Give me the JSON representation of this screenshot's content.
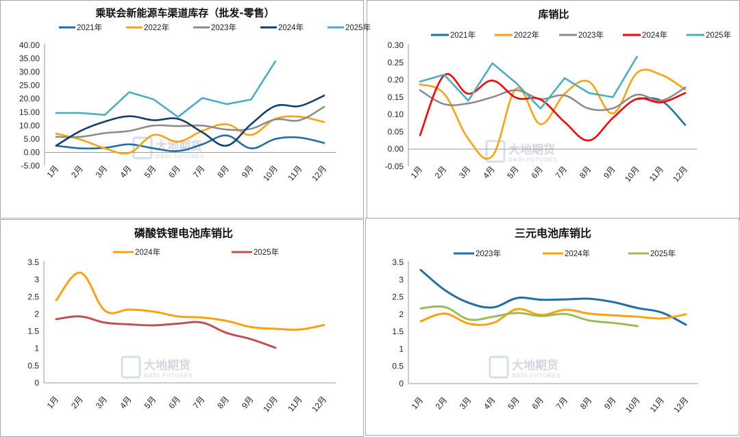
{
  "watermark": {
    "cn": "大地期货",
    "en": "DADI FUTURES"
  },
  "chart_data": [
    {
      "type": "line",
      "title": "乘联会新能源车渠道库存（批发-零售）",
      "categories": [
        "1月",
        "2月",
        "3月",
        "4月",
        "5月",
        "6月",
        "7月",
        "8月",
        "9月",
        "10月",
        "11月",
        "12月"
      ],
      "yticks": [
        "40.00",
        "35.00",
        "30.00",
        "25.00",
        "20.00",
        "15.00",
        "10.00",
        "5.00",
        "0.00",
        "-5.00"
      ],
      "ylim": [
        -5,
        40
      ],
      "grid": false,
      "legend": "top",
      "series": [
        {
          "name": "2021年",
          "color": "#1f6fa5",
          "values": [
            2.5,
            1.5,
            1.7,
            3.0,
            1.5,
            0.5,
            3.0,
            6.3,
            1.5,
            5.0,
            5.5,
            3.5
          ]
        },
        {
          "name": "2022年",
          "color": "#ffa10a",
          "values": [
            7.0,
            4.8,
            1.5,
            -0.2,
            6.5,
            4.0,
            8.0,
            10.5,
            6.5,
            12.5,
            13.3,
            11.3
          ]
        },
        {
          "name": "2023年",
          "color": "#8c8c8c",
          "values": [
            5.8,
            5.8,
            7.2,
            8.0,
            10.0,
            9.8,
            10.0,
            8.5,
            8.8,
            12.3,
            12.0,
            17.0
          ]
        },
        {
          "name": "2024年",
          "color": "#123e6b",
          "values": [
            2.5,
            8.0,
            11.5,
            13.5,
            12.0,
            12.5,
            7.5,
            2.5,
            10.5,
            17.3,
            17.3,
            21.2
          ]
        },
        {
          "name": "2025年",
          "color": "#4bacc6",
          "values": [
            14.7,
            14.7,
            14.0,
            22.5,
            19.8,
            13.2,
            20.3,
            18.0,
            19.7,
            34.0,
            null,
            null
          ]
        }
      ]
    },
    {
      "type": "line",
      "title": "库销比",
      "categories": [
        "1月",
        "2月",
        "3月",
        "4月",
        "5月",
        "6月",
        "7月",
        "8月",
        "9月",
        "10月",
        "11月",
        "12月"
      ],
      "yticks": [
        "0.30",
        "0.25",
        "0.20",
        "0.15",
        "0.10",
        "0.05",
        "0.00",
        "-0.05"
      ],
      "ylim": [
        -0.05,
        0.3
      ],
      "grid": false,
      "legend": "top",
      "series": [
        {
          "name": "2021年",
          "color": "#1f6fa5",
          "values": [
            null,
            null,
            null,
            null,
            null,
            null,
            null,
            null,
            null,
            0.145,
            0.14,
            0.07
          ]
        },
        {
          "name": "2022年",
          "color": "#ffa10a",
          "values": [
            0.187,
            0.16,
            0.03,
            -0.02,
            0.175,
            0.072,
            0.16,
            0.195,
            0.103,
            0.22,
            0.215,
            0.172
          ]
        },
        {
          "name": "2023年",
          "color": "#8c8c8c",
          "values": [
            0.17,
            0.13,
            0.132,
            0.15,
            0.17,
            0.145,
            0.155,
            0.117,
            0.118,
            0.157,
            0.14,
            0.178
          ]
        },
        {
          "name": "2024年",
          "color": "#ff0000",
          "values": [
            0.04,
            0.213,
            0.16,
            0.198,
            0.148,
            0.143,
            0.078,
            0.025,
            0.09,
            0.145,
            0.135,
            0.162
          ]
        },
        {
          "name": "2025年",
          "color": "#4bacc6",
          "values": [
            0.195,
            0.215,
            0.14,
            0.248,
            0.19,
            0.117,
            0.205,
            0.162,
            0.15,
            0.267,
            null,
            null
          ]
        }
      ]
    },
    {
      "type": "line",
      "title": "磷酸铁锂电池库销比",
      "categories": [
        "1月",
        "2月",
        "3月",
        "4月",
        "5月",
        "6月",
        "7月",
        "8月",
        "9月",
        "10月",
        "11月",
        "12月"
      ],
      "yticks": [
        "3.5",
        "3",
        "2.5",
        "2",
        "1.5",
        "1",
        "0.5",
        "0"
      ],
      "ylim": [
        0,
        3.5
      ],
      "grid": false,
      "legend": "top",
      "series": [
        {
          "name": "2024年",
          "color": "#ffa10a",
          "values": [
            2.4,
            3.2,
            2.1,
            2.13,
            2.07,
            1.93,
            1.9,
            1.8,
            1.62,
            1.57,
            1.55,
            1.68
          ]
        },
        {
          "name": "2025年",
          "color": "#c0504d",
          "values": [
            1.85,
            1.93,
            1.75,
            1.7,
            1.67,
            1.72,
            1.75,
            1.45,
            1.27,
            1.02,
            null,
            null
          ]
        }
      ]
    },
    {
      "type": "line",
      "title": "三元电池库销比",
      "categories": [
        "1月",
        "2月",
        "3月",
        "4月",
        "5月",
        "6月",
        "7月",
        "8月",
        "9月",
        "10月",
        "11月",
        "12月"
      ],
      "yticks": [
        "3.5",
        "3",
        "2.5",
        "2",
        "1.5",
        "1",
        "0.5",
        "0"
      ],
      "ylim": [
        0,
        3.5
      ],
      "grid": false,
      "legend": "top",
      "series": [
        {
          "name": "2023年",
          "color": "#1f6fa5",
          "values": [
            3.28,
            2.7,
            2.33,
            2.2,
            2.47,
            2.42,
            2.43,
            2.45,
            2.35,
            2.18,
            2.05,
            1.7
          ]
        },
        {
          "name": "2024年",
          "color": "#ffa10a",
          "values": [
            1.8,
            2.02,
            1.73,
            1.75,
            2.15,
            1.98,
            2.13,
            2.02,
            1.97,
            1.93,
            1.88,
            2.0
          ]
        },
        {
          "name": "2025年",
          "color": "#9bbb59",
          "values": [
            2.17,
            2.21,
            1.85,
            1.93,
            2.04,
            1.95,
            2.01,
            1.82,
            1.75,
            1.66,
            null,
            null
          ]
        }
      ]
    }
  ]
}
